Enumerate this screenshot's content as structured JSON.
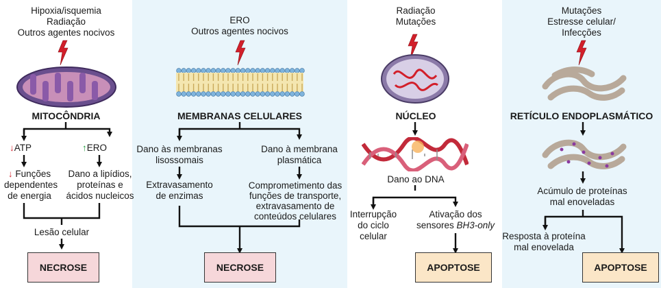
{
  "colors": {
    "panel_light": "#e9f5fb",
    "necrose_box": "#f6d7da",
    "apoptose_box": "#fbe6c7",
    "arrow_down": "#d21f2a",
    "arrow_up": "#1e9c3a",
    "lightning": "#d21f2a"
  },
  "panel1": {
    "causes": [
      "Hipoxia/isquemia",
      "Radiação",
      "Outros agentes nocivos"
    ],
    "organelle": "MITOCÔNDRIA",
    "left_branch": {
      "marker": "↓",
      "label": "ATP"
    },
    "right_branch": {
      "marker": "↑",
      "label": "ERO"
    },
    "left_effect": {
      "marker": "↓",
      "lines": [
        "Funções",
        "dependentes",
        "de energia"
      ]
    },
    "right_effect": [
      "Dano a lipídios,",
      "proteínas e",
      "ácidos nucleicos"
    ],
    "injury": "Lesão celular",
    "outcome": "NECROSE"
  },
  "panel2": {
    "causes": [
      "ERO",
      "Outros agentes nocivos"
    ],
    "organelle": "MEMBRANAS CELULARES",
    "left_damage": [
      "Dano às membranas",
      "lisossomais"
    ],
    "right_damage": [
      "Dano à membrana",
      "plasmática"
    ],
    "left_effect": [
      "Extravasamento",
      "de enzimas"
    ],
    "right_effect": [
      "Comprometimento das",
      "funções de transporte,",
      "extravasamento de",
      "conteúdos celulares"
    ],
    "outcome": "NECROSE"
  },
  "panel3": {
    "causes": [
      "Radiação",
      "Mutações"
    ],
    "organelle": "NÚCLEO",
    "damage": "Dano ao DNA",
    "left_effect": [
      "Interrupção",
      "do ciclo",
      "celular"
    ],
    "right_effect_line1": "Ativação dos",
    "right_effect_line2_prefix": "sensores ",
    "right_effect_line2_italic": "BH3-only",
    "outcome": "APOPTOSE"
  },
  "panel4": {
    "causes": [
      "Mutações",
      "Estresse celular/",
      "Infecções"
    ],
    "organelle": "RETÍCULO ENDOPLASMÁTICO",
    "accumulation": [
      "Acúmulo de proteínas",
      "mal enoveladas"
    ],
    "response": [
      "Resposta à proteína",
      "mal enovelada"
    ],
    "outcome": "APOPTOSE"
  }
}
